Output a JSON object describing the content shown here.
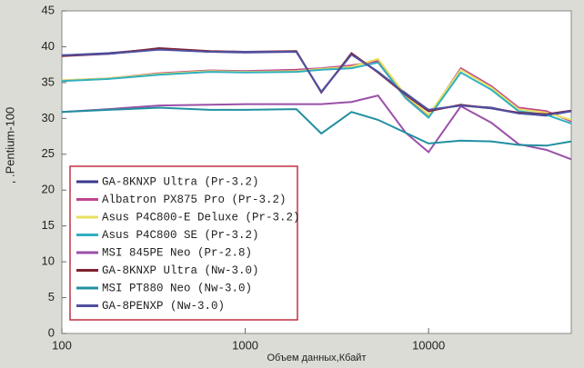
{
  "chart_data": {
    "type": "line",
    "y_label": ", .Pentium-100",
    "x_label": "Объем данных,Кбайт",
    "x": [
      100,
      180,
      340,
      640,
      1000,
      1900,
      2600,
      3800,
      5300,
      7500,
      10000,
      15000,
      22000,
      31000,
      44000,
      60000
    ],
    "xlim": [
      100,
      60000
    ],
    "xticks": [
      100,
      1000,
      10000
    ],
    "xlog": true,
    "ylim": [
      0,
      45
    ],
    "yticks": [
      0,
      5,
      10,
      15,
      20,
      25,
      30,
      35,
      40,
      45
    ],
    "series": [
      {
        "name": "GA-8KNXP Ultra (Pr-3.2)",
        "color": "#3a3a8c",
        "values": [
          38.8,
          39.1,
          39.7,
          39.3,
          39.2,
          39.3,
          33.7,
          39,
          36.5,
          33.5,
          31.2,
          31.8,
          31.5,
          30.7,
          30.4,
          31
        ]
      },
      {
        "name": "Albatron PX875 Pro (Pr-3.2)",
        "color": "#c0448f",
        "values": [
          35.3,
          35.6,
          36.3,
          36.7,
          36.6,
          36.8,
          37,
          37.4,
          38,
          33,
          30.3,
          37,
          34.5,
          31.5,
          31,
          29.6
        ]
      },
      {
        "name": "Asus P4C800-E Deluxe (Pr-3.2)",
        "color": "#e8e060",
        "values": [
          35.3,
          35.6,
          36.2,
          36.6,
          36.5,
          36.6,
          36.9,
          37.2,
          38.3,
          33.2,
          30.5,
          36.8,
          34.3,
          31.3,
          30.8,
          29.8
        ]
      },
      {
        "name": "Asus P4C800 SE (Pr-3.2)",
        "color": "#30b0c0",
        "values": [
          35.2,
          35.5,
          36.1,
          36.5,
          36.4,
          36.5,
          36.8,
          37,
          37.8,
          32.8,
          30.1,
          36.4,
          34,
          31,
          30.5,
          29.3
        ]
      },
      {
        "name": "MSI 845PE Neo (Pr-2.8)",
        "color": "#9a50a8",
        "values": [
          30.9,
          31.3,
          31.8,
          31.9,
          32,
          32,
          32,
          32.3,
          33.2,
          28,
          25.3,
          31.7,
          29.4,
          26.4,
          25.6,
          24.3
        ]
      },
      {
        "name": "GA-8KNXP Ultra (Nw-3.0)",
        "color": "#802030",
        "values": [
          38.7,
          39,
          39.8,
          39.4,
          39.3,
          39.4,
          33.6,
          39.1,
          36.4,
          33.3,
          31,
          31.9,
          31.4,
          30.8,
          30.6,
          31.1
        ]
      },
      {
        "name": "MSI PT880 Neo (Nw-3.0)",
        "color": "#2090a0",
        "values": [
          30.9,
          31.2,
          31.5,
          31.2,
          31.2,
          31.3,
          27.9,
          30.9,
          29.8,
          28,
          26.5,
          26.9,
          26.8,
          26.3,
          26.2,
          26.8
        ]
      },
      {
        "name": "GA-8PENXP (Nw-3.0)",
        "color": "#5050a0",
        "values": [
          38.8,
          39,
          39.6,
          39.3,
          39.3,
          39.3,
          33.7,
          38.9,
          36.5,
          33.4,
          31.2,
          31.8,
          31.4,
          30.7,
          30.5,
          31
        ]
      }
    ]
  }
}
